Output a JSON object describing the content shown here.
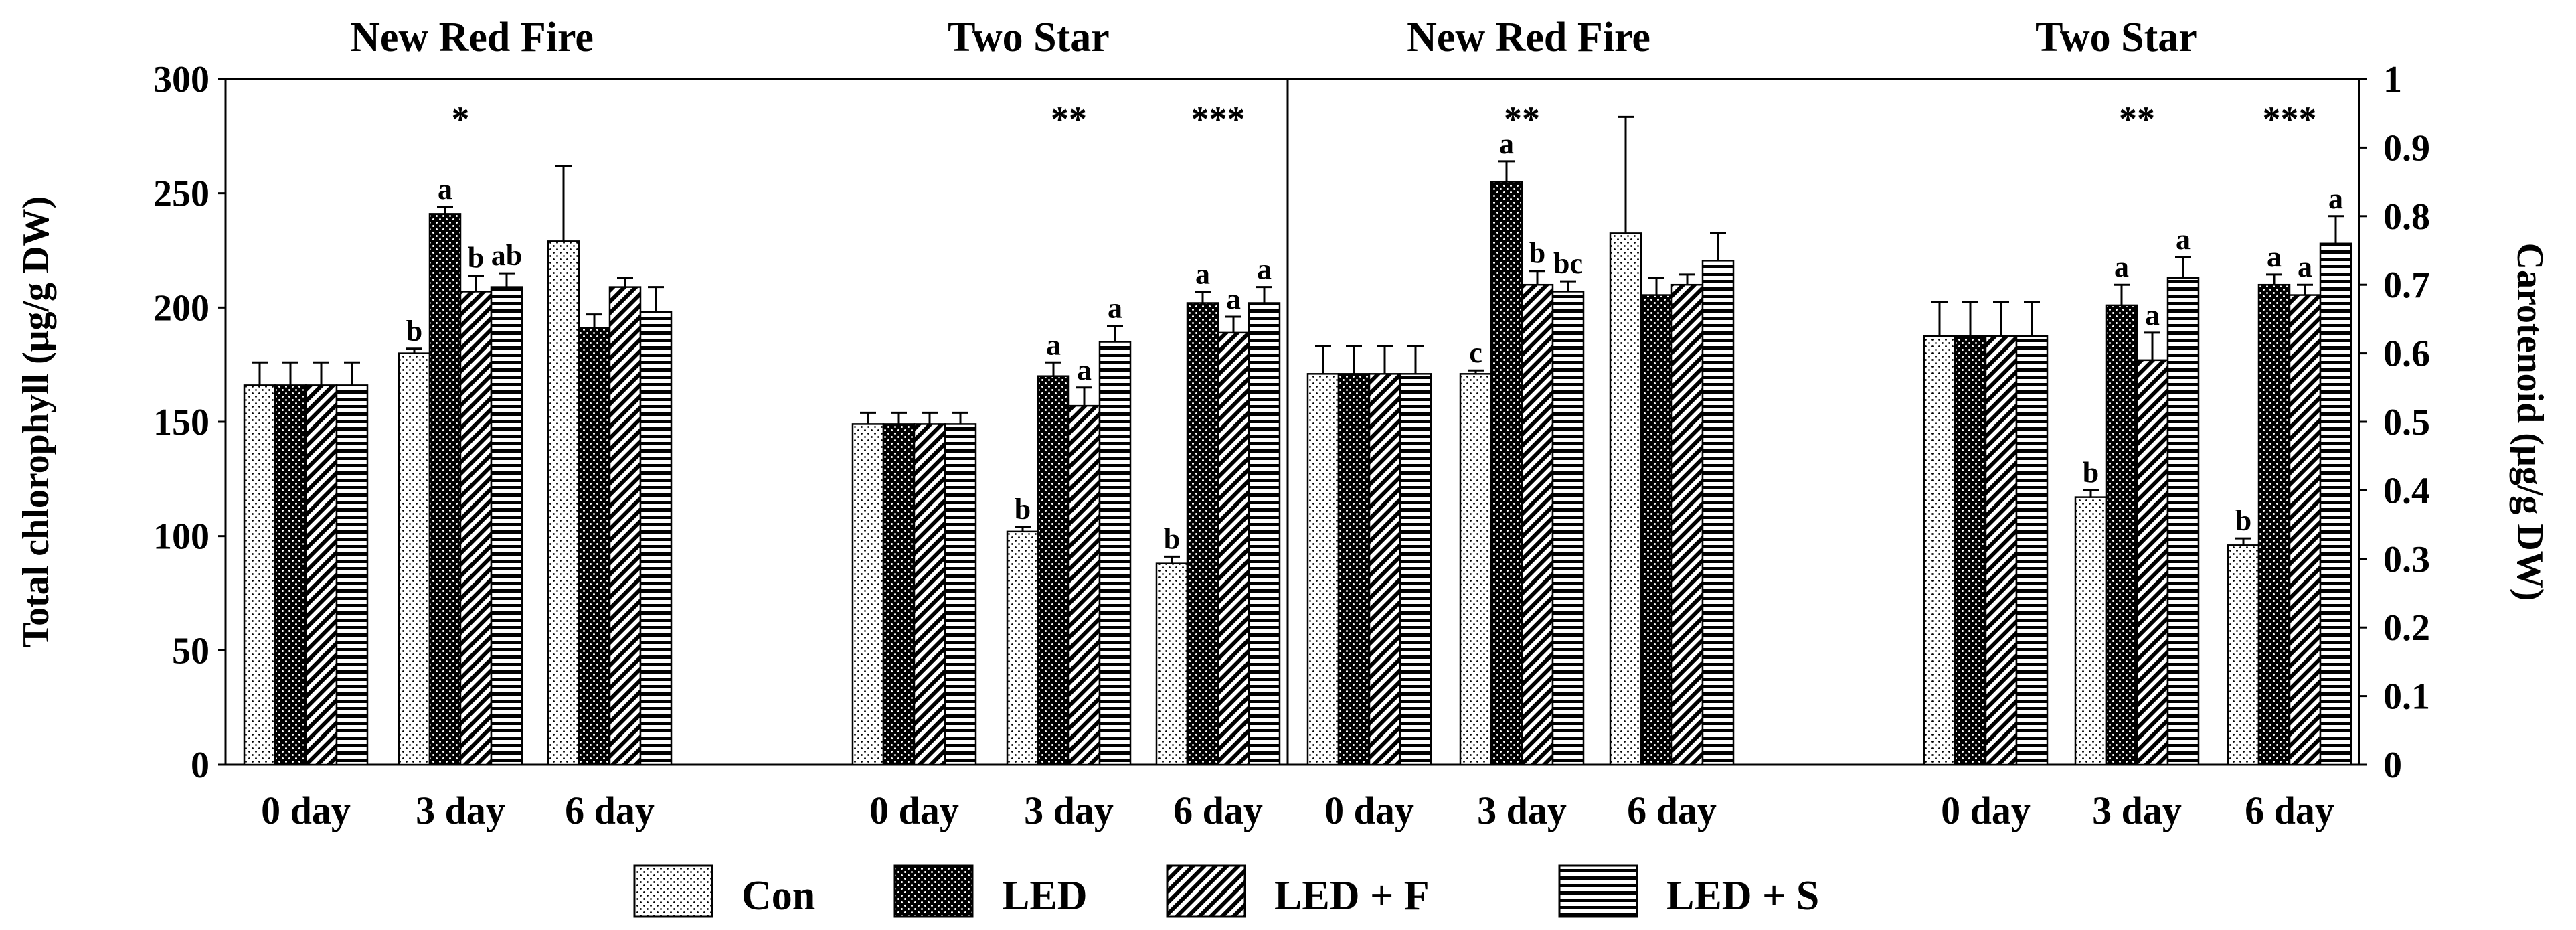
{
  "chart_data": [
    {
      "type": "bar",
      "measure": "Total chlorophyll",
      "ylabel": "Total chlorophyll (μg/g DW)",
      "ylim": [
        0,
        300
      ],
      "yticks": [
        "0",
        "50",
        "100",
        "150",
        "200",
        "250",
        "300"
      ],
      "series_names": [
        "Con",
        "LED",
        "LED + F",
        "LED + S"
      ],
      "cultivars": [
        {
          "title": "New Red Fire",
          "groups": [
            {
              "label": "0 day",
              "values": [
                166,
                166,
                166,
                166
              ],
              "errors": [
                10,
                10,
                10,
                10
              ],
              "letters": [
                "",
                "",
                "",
                ""
              ],
              "sig": ""
            },
            {
              "label": "3 day",
              "values": [
                180,
                241,
                207,
                209
              ],
              "errors": [
                2,
                3,
                7,
                6
              ],
              "letters": [
                "b",
                "a",
                "b",
                "ab"
              ],
              "sig": "*"
            },
            {
              "label": "6 day",
              "values": [
                229,
                191,
                209,
                198
              ],
              "errors": [
                33,
                6,
                4,
                11
              ],
              "letters": [
                "",
                "",
                "",
                ""
              ],
              "sig": ""
            }
          ]
        },
        {
          "title": "Two Star",
          "groups": [
            {
              "label": "0 day",
              "values": [
                149,
                149,
                149,
                149
              ],
              "errors": [
                5,
                5,
                5,
                5
              ],
              "letters": [
                "",
                "",
                "",
                ""
              ],
              "sig": ""
            },
            {
              "label": "3 day",
              "values": [
                102,
                170,
                157,
                185
              ],
              "errors": [
                2,
                6,
                8,
                7
              ],
              "letters": [
                "b",
                "a",
                "a",
                "a"
              ],
              "sig": "**"
            },
            {
              "label": "6 day",
              "values": [
                88,
                202,
                189,
                202
              ],
              "errors": [
                3,
                5,
                7,
                7
              ],
              "letters": [
                "b",
                "a",
                "a",
                "a"
              ],
              "sig": "***"
            }
          ]
        }
      ]
    },
    {
      "type": "bar",
      "measure": "Carotenoid",
      "ylabel": "Carotenoid (μg/g DW)",
      "ylim": [
        0,
        1
      ],
      "yticks": [
        "0",
        "0.1",
        "0.2",
        "0.3",
        "0.4",
        "0.5",
        "0.6",
        "0.7",
        "0.8",
        "0.9",
        "1"
      ],
      "series_names": [
        "Con",
        "LED",
        "LED + F",
        "LED + S"
      ],
      "cultivars": [
        {
          "title": "New Red Fire",
          "groups": [
            {
              "label": "0 day",
              "values": [
                0.57,
                0.57,
                0.57,
                0.57
              ],
              "errors": [
                0.04,
                0.04,
                0.04,
                0.04
              ],
              "letters": [
                "",
                "",
                "",
                ""
              ],
              "sig": ""
            },
            {
              "label": "3 day",
              "values": [
                0.57,
                0.85,
                0.7,
                0.69
              ],
              "errors": [
                0.005,
                0.03,
                0.02,
                0.015
              ],
              "letters": [
                "c",
                "a",
                "b",
                "bc"
              ],
              "sig": "**"
            },
            {
              "label": "6 day",
              "values": [
                0.775,
                0.685,
                0.7,
                0.735
              ],
              "errors": [
                0.17,
                0.025,
                0.015,
                0.04
              ],
              "letters": [
                "",
                "",
                "",
                ""
              ],
              "sig": ""
            }
          ]
        },
        {
          "title": "Two Star",
          "groups": [
            {
              "label": "0 day",
              "values": [
                0.625,
                0.625,
                0.625,
                0.625
              ],
              "errors": [
                0.05,
                0.05,
                0.05,
                0.05
              ],
              "letters": [
                "",
                "",
                "",
                ""
              ],
              "sig": ""
            },
            {
              "label": "3 day",
              "values": [
                0.39,
                0.67,
                0.59,
                0.71
              ],
              "errors": [
                0.01,
                0.03,
                0.04,
                0.03
              ],
              "letters": [
                "b",
                "a",
                "a",
                "a"
              ],
              "sig": "**"
            },
            {
              "label": "6 day",
              "values": [
                0.32,
                0.7,
                0.685,
                0.76
              ],
              "errors": [
                0.01,
                0.015,
                0.015,
                0.04
              ],
              "letters": [
                "b",
                "a",
                "a",
                "a"
              ],
              "sig": "***"
            }
          ]
        }
      ]
    }
  ],
  "legend": {
    "items": [
      {
        "label": "Con",
        "pattern": "dots-sparse"
      },
      {
        "label": "LED",
        "pattern": "dots-dark"
      },
      {
        "label": "LED + F",
        "pattern": "diagonal"
      },
      {
        "label": "LED + S",
        "pattern": "horizontal"
      }
    ]
  }
}
